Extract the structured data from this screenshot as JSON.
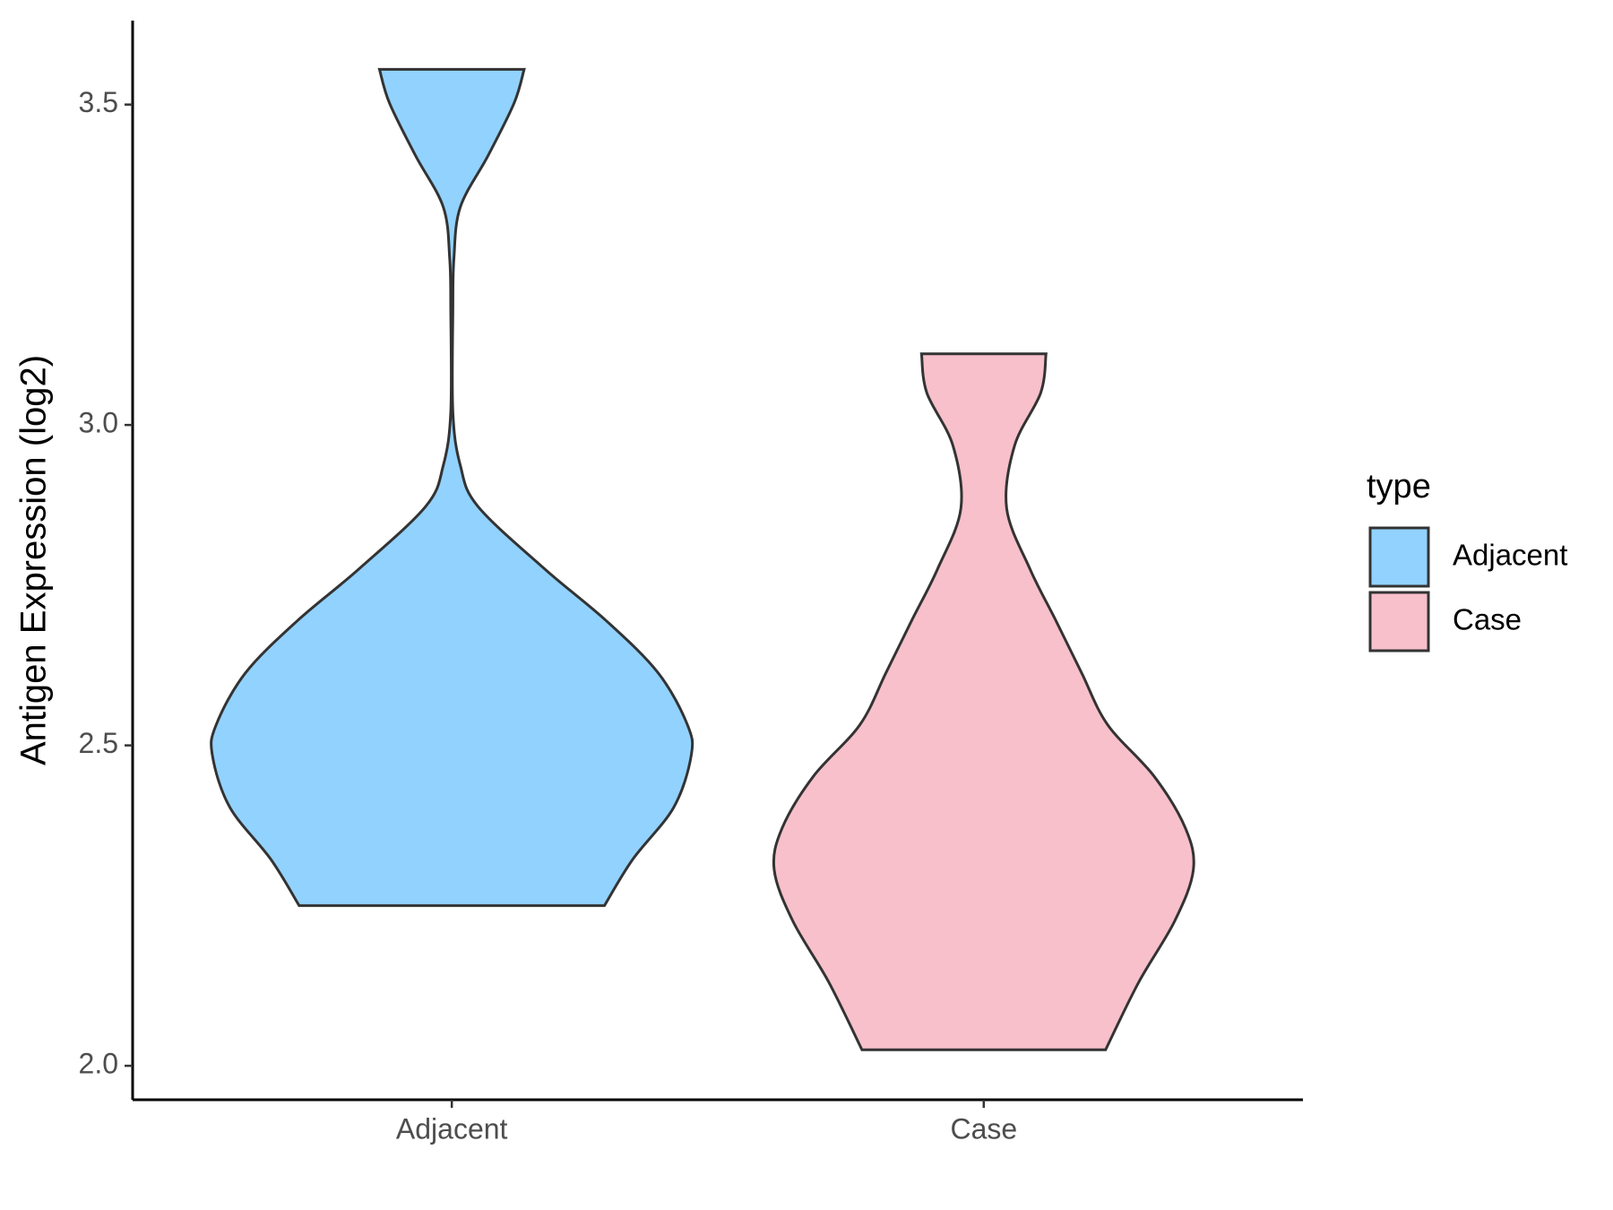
{
  "chart_data": {
    "type": "violin",
    "y_label": "Antigen Expression (log2)",
    "categories": [
      "Adjacent",
      "Case"
    ],
    "legend_title": "type",
    "legend_position": "right",
    "series": [
      {
        "name": "Adjacent",
        "color": "#92d2fe",
        "y": [
          3.555,
          3.502,
          3.42,
          3.34,
          3.26,
          3.18,
          3.02,
          2.937,
          2.873,
          2.775,
          2.694,
          2.613,
          2.532,
          2.484,
          2.403,
          2.322,
          2.25
        ],
        "widths": [
          0.136,
          0.117,
          0.068,
          0.016,
          0.004,
          0.002,
          0.002,
          0.016,
          0.049,
          0.175,
          0.291,
          0.388,
          0.443,
          0.45,
          0.417,
          0.34,
          0.287
        ]
      },
      {
        "name": "Case",
        "color": "#f7c0cb",
        "y": [
          3.111,
          3.05,
          2.968,
          2.87,
          2.775,
          2.694,
          2.613,
          2.532,
          2.452,
          2.371,
          2.306,
          2.226,
          2.13,
          2.025
        ],
        "widths": [
          0.117,
          0.107,
          0.058,
          0.043,
          0.087,
          0.136,
          0.184,
          0.233,
          0.32,
          0.379,
          0.394,
          0.359,
          0.291,
          0.229
        ]
      }
    ],
    "ylim": [
      1.947,
      3.631
    ],
    "yticks": [
      {
        "value": 2,
        "label": "2.0"
      },
      {
        "value": 2.5,
        "label": "2.5"
      },
      {
        "value": 3,
        "label": "3.0"
      },
      {
        "value": 3.5,
        "label": "3.5"
      }
    ],
    "grid": false
  }
}
